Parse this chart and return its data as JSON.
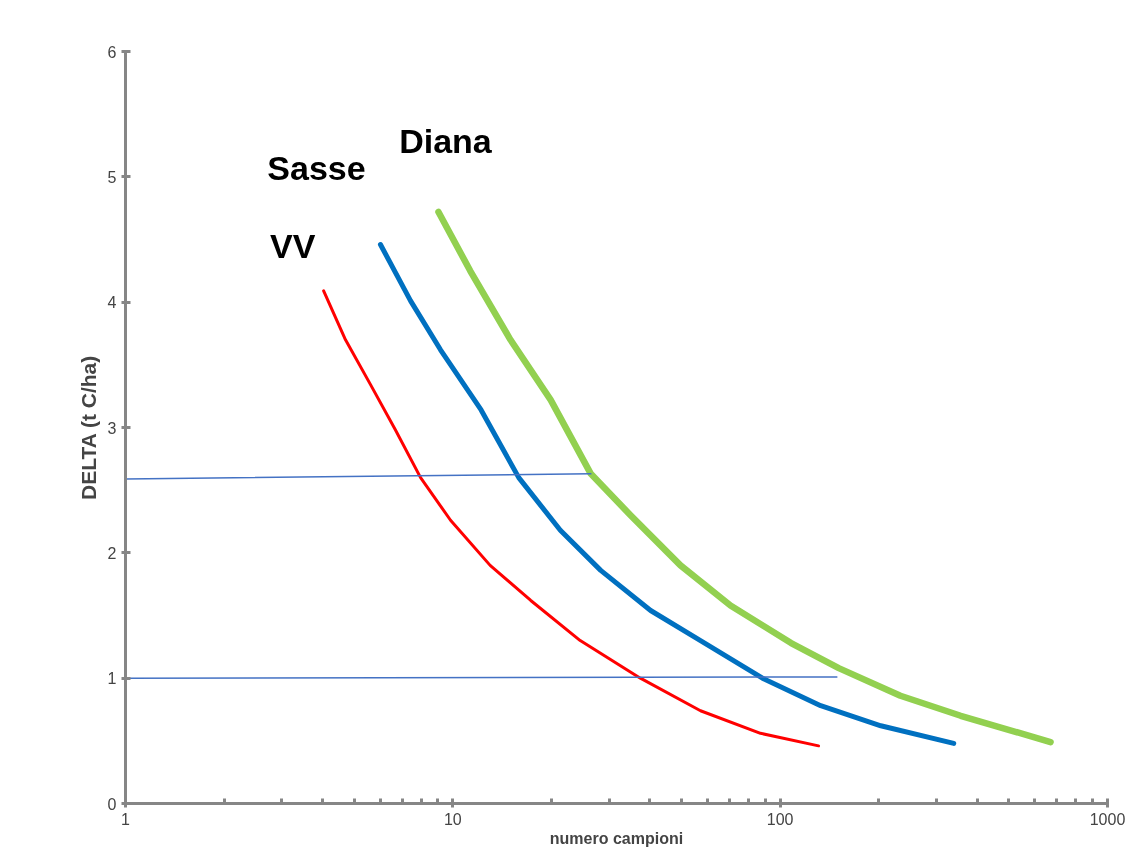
{
  "chart_data": {
    "type": "line",
    "xlabel": "numero campioni",
    "ylabel": "DELTA (t C/ha)",
    "log": "x",
    "grid": false,
    "marker": "none",
    "line_style": "solid",
    "xlim": [
      1,
      1000
    ],
    "xticks": [
      1,
      10,
      100,
      1000
    ],
    "ylim": [
      0,
      6
    ],
    "yticks": [
      0,
      1,
      2,
      3,
      4,
      5,
      6
    ],
    "series": [
      {
        "name": "VV",
        "color": "#ff0000",
        "x": [
          4.03,
          4.7,
          5.61,
          6.68,
          7.97,
          9.84,
          13.0,
          17.3,
          24.5,
          37.4,
          57.1,
          87.1,
          131
        ],
        "values": [
          4.09,
          3.7,
          3.34,
          2.98,
          2.6,
          2.26,
          1.9,
          1.62,
          1.3,
          1.0,
          0.74,
          0.56,
          0.46
        ]
      },
      {
        "name": "Sasse",
        "color": "#0070c0",
        "x": [
          6.01,
          7.43,
          9.17,
          12.2,
          15.9,
          21.3,
          28.3,
          40.2,
          57.1,
          88.3,
          133,
          203,
          339
        ],
        "values": [
          4.46,
          4.01,
          3.62,
          3.14,
          2.6,
          2.18,
          1.86,
          1.54,
          1.3,
          1.0,
          0.78,
          0.62,
          0.48
        ]
      },
      {
        "name": "Diana",
        "color": "#92d050",
        "x": [
          9.04,
          11.3,
          15.0,
          19.9,
          26.4,
          34.9,
          49.6,
          70.5,
          108,
          151,
          233,
          356,
          670
        ],
        "values": [
          4.72,
          4.25,
          3.7,
          3.22,
          2.63,
          2.3,
          1.9,
          1.58,
          1.28,
          1.08,
          0.86,
          0.7,
          0.49
        ]
      },
      {
        "color": "#4472c4",
        "x": [
          1,
          26.4
        ],
        "values": [
          2.59,
          2.63
        ]
      },
      {
        "color": "#4472c4",
        "x": [
          1,
          149
        ],
        "values": [
          1.0,
          1.01
        ]
      }
    ]
  }
}
